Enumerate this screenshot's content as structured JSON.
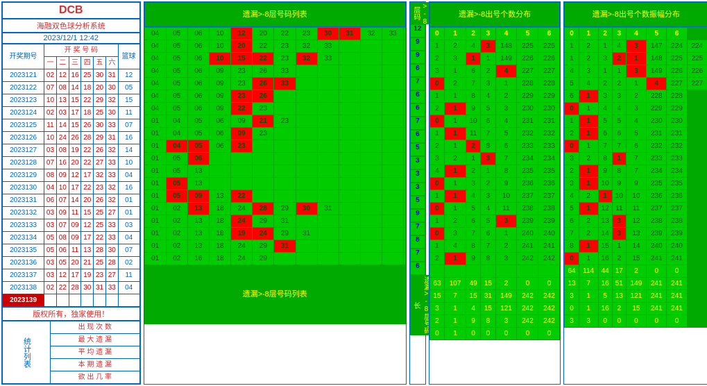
{
  "header": {
    "logo": "DCB",
    "title": "海融双色球分析系统",
    "timestamp": "2023/12/1 12:42"
  },
  "colA": {
    "title": "开奖期号",
    "subheader": "开 奖 号 码",
    "cols": [
      "一",
      "二",
      "三",
      "四",
      "五",
      "六"
    ],
    "blue_col": "篮球",
    "rows": [
      {
        "p": "2023121",
        "r": [
          "02",
          "12",
          "16",
          "25",
          "30",
          "31"
        ],
        "b": "12"
      },
      {
        "p": "2023122",
        "r": [
          "07",
          "08",
          "14",
          "18",
          "20",
          "30"
        ],
        "b": "05"
      },
      {
        "p": "2023123",
        "r": [
          "10",
          "13",
          "15",
          "22",
          "29",
          "32"
        ],
        "b": "15"
      },
      {
        "p": "2023124",
        "r": [
          "02",
          "03",
          "17",
          "18",
          "25",
          "30"
        ],
        "b": "11"
      },
      {
        "p": "2023125",
        "r": [
          "11",
          "14",
          "15",
          "26",
          "30",
          "33"
        ],
        "b": "07"
      },
      {
        "p": "2023126",
        "r": [
          "10",
          "24",
          "26",
          "28",
          "29",
          "31"
        ],
        "b": "16"
      },
      {
        "p": "2023127",
        "r": [
          "03",
          "08",
          "19",
          "22",
          "26",
          "32"
        ],
        "b": "14"
      },
      {
        "p": "2023128",
        "r": [
          "07",
          "16",
          "20",
          "22",
          "27",
          "33"
        ],
        "b": "10"
      },
      {
        "p": "2023129",
        "r": [
          "08",
          "09",
          "12",
          "17",
          "32",
          "33"
        ],
        "b": "04"
      },
      {
        "p": "2023130",
        "r": [
          "04",
          "10",
          "17",
          "22",
          "23",
          "32"
        ],
        "b": "16"
      },
      {
        "p": "2023131",
        "r": [
          "06",
          "07",
          "14",
          "20",
          "26",
          "32"
        ],
        "b": "01"
      },
      {
        "p": "2023132",
        "r": [
          "03",
          "09",
          "11",
          "15",
          "25",
          "27"
        ],
        "b": "01"
      },
      {
        "p": "2023133",
        "r": [
          "03",
          "07",
          "09",
          "12",
          "25",
          "33"
        ],
        "b": "03"
      },
      {
        "p": "2023134",
        "r": [
          "05",
          "08",
          "09",
          "17",
          "22",
          "33"
        ],
        "b": "04"
      },
      {
        "p": "2023135",
        "r": [
          "05",
          "06",
          "11",
          "13",
          "28",
          "30"
        ],
        "b": "07"
      },
      {
        "p": "2023136",
        "r": [
          "03",
          "05",
          "20",
          "21",
          "25",
          "28"
        ],
        "b": "02"
      },
      {
        "p": "2023137",
        "r": [
          "03",
          "12",
          "17",
          "19",
          "23",
          "27"
        ],
        "b": "11"
      },
      {
        "p": "2023138",
        "r": [
          "02",
          "22",
          "28",
          "30",
          "31",
          "33"
        ],
        "b": "04"
      },
      {
        "p": "2023139",
        "r": [
          "",
          "",
          "",
          "",
          "",
          ""
        ],
        "b": "",
        "hl": true
      }
    ],
    "copyright": "版权所有，独家使用！",
    "stat_title": "统计列表",
    "stat_rows": [
      "出 现 次 数",
      "最 大 遗 漏",
      "平 均 遗 漏",
      "本 期 遗 漏",
      "欲 出 几 率"
    ]
  },
  "colB": {
    "title": "遗漏>-8层号码列表",
    "rows": [
      [
        "04",
        "05",
        "06",
        "10",
        [
          "12",
          1
        ],
        "20",
        "22",
        "23",
        [
          "30",
          1
        ],
        [
          "31",
          1
        ],
        "32",
        "33"
      ],
      [
        "04",
        "05",
        "06",
        "10",
        [
          "20",
          1
        ],
        "22",
        "23",
        "32",
        "33"
      ],
      [
        "04",
        "05",
        "06",
        [
          "10",
          1
        ],
        [
          "15",
          1
        ],
        [
          "22",
          1
        ],
        "23",
        [
          "32",
          1
        ],
        "33"
      ],
      [
        "04",
        "05",
        "06",
        "09",
        "23",
        "26",
        "33"
      ],
      [
        "04",
        "05",
        "06",
        "09",
        "23",
        [
          "26",
          1
        ],
        [
          "33",
          1
        ]
      ],
      [
        "04",
        "05",
        "06",
        "09",
        [
          "23",
          1
        ],
        [
          "26",
          1
        ]
      ],
      [
        "04",
        "05",
        "06",
        "09",
        [
          "22",
          1
        ],
        "23"
      ],
      [
        "01",
        "04",
        "05",
        "06",
        "09",
        [
          "21",
          1
        ],
        "23"
      ],
      [
        "01",
        "04",
        "05",
        "06",
        [
          "09",
          1
        ],
        "23"
      ],
      [
        "01",
        [
          "04",
          1
        ],
        [
          "05",
          1
        ],
        "06",
        [
          "23",
          1
        ]
      ],
      [
        "01",
        "05",
        [
          "06",
          1
        ]
      ],
      [
        "01",
        "05",
        "13"
      ],
      [
        "01",
        [
          "05",
          1
        ],
        "13"
      ],
      [
        "01",
        [
          "05",
          1
        ],
        [
          "09",
          1
        ],
        "13",
        [
          "22",
          1
        ]
      ],
      [
        "01",
        "02",
        [
          "13",
          1
        ],
        "18",
        "24",
        [
          "28",
          1
        ],
        "29",
        [
          "30",
          1
        ],
        "31"
      ],
      [
        "01",
        "02",
        "13",
        "18",
        [
          "24",
          1
        ],
        "29",
        "31"
      ],
      [
        "01",
        "02",
        "13",
        "18",
        [
          "19",
          1
        ],
        [
          "24",
          1
        ],
        "29",
        "31"
      ],
      [
        "01",
        "02",
        "13",
        "18",
        "24",
        "29",
        [
          "31",
          1
        ]
      ],
      [
        "01",
        "02",
        "16",
        "18",
        "24",
        "29"
      ]
    ],
    "footer": "遗漏>-8层号码列表"
  },
  "strip": {
    "title": "遗漏>-8层码",
    "vals": [
      "12",
      "9",
      "9",
      "6",
      "7",
      "6",
      "6",
      "7",
      "6",
      "5",
      "3",
      "3",
      "3",
      "5",
      "9",
      "7",
      "8",
      "7",
      "6"
    ],
    "footer": "遗漏>-8层号码长"
  },
  "colC": {
    "title": "遗漏>-8出号个数分布",
    "cols": [
      "0",
      "1",
      "2",
      "3",
      "4",
      "5",
      "6"
    ],
    "rows": [
      [
        "1",
        "2",
        "4",
        [
          "3",
          1
        ],
        "148",
        "225",
        "225"
      ],
      [
        "2",
        "3",
        [
          "1",
          1
        ],
        "1",
        "149",
        "226",
        "226"
      ],
      [
        "3",
        "1",
        "6",
        "2",
        [
          "4",
          1
        ],
        "227",
        "227"
      ],
      [
        [
          "0",
          1
        ],
        "2",
        "7",
        "3",
        "1",
        "228",
        "228"
      ],
      [
        "1",
        "1",
        "8",
        "4",
        "2",
        "229",
        "229"
      ],
      [
        "2",
        [
          "1",
          1
        ],
        "9",
        "5",
        "3",
        "230",
        "230"
      ],
      [
        [
          "0",
          1
        ],
        "1",
        "10",
        "6",
        "4",
        "231",
        "231"
      ],
      [
        "1",
        [
          "1",
          1
        ],
        "11",
        "7",
        "5",
        "232",
        "232"
      ],
      [
        "2",
        "1",
        [
          "2",
          1
        ],
        "8",
        "6",
        "233",
        "233"
      ],
      [
        "3",
        "2",
        "1",
        [
          "3",
          1
        ],
        "7",
        "234",
        "234"
      ],
      [
        "4",
        [
          "1",
          1
        ],
        "2",
        "1",
        "8",
        "235",
        "235"
      ],
      [
        [
          "0",
          1
        ],
        "1",
        "3",
        "2",
        "9",
        "236",
        "236"
      ],
      [
        "1",
        [
          "1",
          1
        ],
        "4",
        "3",
        "10",
        "237",
        "237"
      ],
      [
        [
          "0",
          1
        ],
        "1",
        "5",
        "4",
        "11",
        "238",
        "238"
      ],
      [
        "1",
        "2",
        "6",
        "5",
        [
          "3",
          1
        ],
        "239",
        "239"
      ],
      [
        [
          "0",
          1
        ],
        "3",
        "7",
        "6",
        "1",
        "240",
        "240"
      ],
      [
        "1",
        "4",
        "8",
        "7",
        "2",
        "241",
        "241"
      ],
      [
        "2",
        [
          "1",
          1
        ],
        "9",
        "8",
        "3",
        "242",
        "242"
      ],
      [
        "",
        " ",
        " ",
        " ",
        " ",
        " ",
        " "
      ]
    ],
    "stat": [
      [
        "63",
        "107",
        "49",
        "15",
        "2",
        "0",
        "0"
      ],
      [
        "15",
        "7",
        "15",
        "31",
        "149",
        "242",
        "242"
      ],
      [
        "3",
        "1",
        "4",
        "15",
        "121",
        "242",
        "242"
      ],
      [
        "2",
        "1",
        "9",
        "8",
        "3",
        "242",
        "242"
      ],
      [
        "0",
        "1",
        "0",
        "0",
        "0",
        "0",
        "0"
      ]
    ]
  },
  "colD": {
    "title": "遗漏>-8出号个数振幅分布",
    "cols": [
      "0",
      "1",
      "2",
      "3",
      "4",
      "5",
      "6"
    ],
    "rows": [
      [
        "1",
        "2",
        "1",
        "4",
        [
          "3",
          1
        ],
        "147",
        "224",
        "224"
      ],
      [
        "1",
        "2",
        "3",
        [
          "2",
          1
        ],
        [
          "1",
          1
        ],
        "148",
        "225",
        "225"
      ],
      [
        "4",
        "3",
        "1",
        "1",
        [
          "3",
          1
        ],
        "149",
        "226",
        "226"
      ],
      [
        "5",
        "4",
        "2",
        "2",
        "1",
        [
          "4",
          1
        ],
        "227",
        "227"
      ],
      [
        "6",
        [
          "1",
          1
        ],
        "3",
        "3",
        "2",
        "228",
        "228"
      ],
      [
        [
          "0",
          1
        ],
        "1",
        "4",
        "4",
        "3",
        "229",
        "229"
      ],
      [
        "1",
        [
          "1",
          1
        ],
        "5",
        "5",
        "4",
        "230",
        "230"
      ],
      [
        "2",
        [
          "1",
          1
        ],
        "6",
        "6",
        "5",
        "231",
        "231"
      ],
      [
        [
          "0",
          1
        ],
        "1",
        "7",
        "7",
        "6",
        "232",
        "232"
      ],
      [
        "3",
        "2",
        "8",
        [
          "1",
          1
        ],
        "7",
        "233",
        "233"
      ],
      [
        "2",
        [
          "1",
          1
        ],
        "9",
        "8",
        "7",
        "234",
        "234"
      ],
      [
        "3",
        [
          "1",
          1
        ],
        "10",
        "9",
        "9",
        "235",
        "235"
      ],
      [
        "4",
        "2",
        [
          "1",
          1
        ],
        "10",
        "10",
        "236",
        "236"
      ],
      [
        "5",
        [
          "1",
          1
        ],
        "12",
        "11",
        "11",
        "237",
        "237"
      ],
      [
        "6",
        "2",
        "13",
        [
          "3",
          1
        ],
        "12",
        "238",
        "238"
      ],
      [
        "7",
        "2",
        "14",
        [
          "3",
          1
        ],
        "13",
        "239",
        "239"
      ],
      [
        "8",
        [
          "1",
          1
        ],
        "15",
        "1",
        "14",
        "240",
        "240"
      ],
      [
        [
          "0",
          1
        ],
        "1",
        "16",
        "2",
        "15",
        "241",
        "241"
      ]
    ],
    "stat": [
      [
        "64",
        "114",
        "44",
        "17",
        "2",
        "0",
        "0"
      ],
      [
        "13",
        "7",
        "16",
        "51",
        "149",
        "241",
        "241"
      ],
      [
        "3",
        "1",
        "5",
        "13",
        "121",
        "241",
        "241"
      ],
      [
        "0",
        "1",
        "16",
        "2",
        "15",
        "241",
        "241"
      ],
      [
        "3",
        "3",
        "0",
        "0",
        "0",
        "0",
        "0"
      ]
    ]
  },
  "colors": {
    "red": "#cc3333",
    "blue": "#0066cc",
    "green": "#00cc00",
    "hl": "#ff0000",
    "yellow": "#ffff00"
  }
}
